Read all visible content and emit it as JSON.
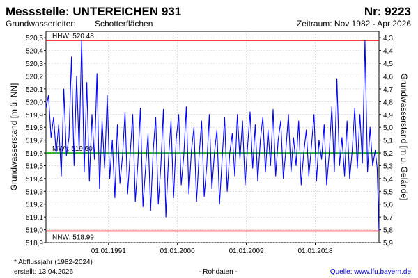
{
  "header": {
    "title": "Messstelle: UNTEREICHEN 931",
    "number": "Nr: 9223",
    "aquifer_label": "Grundwasserleiter:",
    "aquifer_value": "Schotterflächen",
    "period": "Zeitraum: Nov 1982 - Apr 2026"
  },
  "footer": {
    "note": "* Abflussjahr (1982-2024)",
    "created": "erstellt:  13.04.2026",
    "data_type": "- Rohdaten -",
    "source": "Quelle: www.lfu.bayern.de"
  },
  "colors": {
    "series": "#0000ff",
    "extremes": "#ff0000",
    "mean": "#00a000",
    "grid": "#c8c8c8"
  },
  "chart_data": {
    "type": "line",
    "ylabel": "Grundwasserstand [m ü. NN]",
    "y2label": "Grundwasserstand [m u. Gelände]",
    "ylim": [
      518.9,
      520.55
    ],
    "y_ticks": [
      518.9,
      519.0,
      519.1,
      519.2,
      519.3,
      519.4,
      519.5,
      519.6,
      519.7,
      519.8,
      519.9,
      520.0,
      520.1,
      520.2,
      520.3,
      520.4,
      520.5
    ],
    "y_tick_labels": [
      "518,9",
      "519,0",
      "519,1",
      "519,2",
      "519,3",
      "519,4",
      "519,5",
      "519,6",
      "519,7",
      "519,8",
      "519,9",
      "520,0",
      "520,1",
      "520,2",
      "520,3",
      "520,4",
      "520,5"
    ],
    "y2_ticks": [
      4.3,
      4.4,
      4.5,
      4.6,
      4.7,
      4.8,
      4.9,
      5.0,
      5.1,
      5.2,
      5.3,
      5.4,
      5.5,
      5.6,
      5.7,
      5.8,
      5.9
    ],
    "y2_tick_labels": [
      "4,3",
      "4,4",
      "4,5",
      "4,6",
      "4,7",
      "4,8",
      "4,9",
      "5,0",
      "5,1",
      "5,2",
      "5,3",
      "5,4",
      "5,5",
      "5,6",
      "5,7",
      "5,8",
      "5,9"
    ],
    "y2_reference_level": 524.8,
    "xlim": [
      "1982-11-01",
      "2026-04-30"
    ],
    "x_ticks": [
      "1991-01-01",
      "2000-01-01",
      "2009-01-01",
      "2018-01-01"
    ],
    "x_tick_labels": [
      "01.01.1991",
      "01.01.2000",
      "01.01.2009",
      "01.01.2018"
    ],
    "grid": true,
    "reference_lines": [
      {
        "label": "HHW: 520.48",
        "value": 520.48,
        "role": "max"
      },
      {
        "label": "MW*: 519.60",
        "value": 519.6,
        "role": "mean"
      },
      {
        "label": "NNW: 518.99",
        "value": 518.99,
        "role": "min"
      }
    ],
    "series": [
      {
        "x": [
          "1982-11-01",
          "1983-03-01",
          "1983-07-01",
          "1983-11-01",
          "1984-03-01",
          "1984-07-01",
          "1984-11-01",
          "1985-03-01",
          "1985-07-01",
          "1985-11-01",
          "1986-03-01",
          "1986-07-01",
          "1986-11-01",
          "1987-03-01",
          "1987-07-01",
          "1987-11-01",
          "1988-03-01",
          "1988-07-01",
          "1988-11-01",
          "1989-03-01",
          "1989-07-01",
          "1989-11-01",
          "1990-03-01",
          "1990-07-01",
          "1990-11-01",
          "1991-03-01",
          "1991-07-01",
          "1991-11-01",
          "1992-03-01",
          "1992-07-01",
          "1992-11-01",
          "1993-03-01",
          "1993-07-01",
          "1993-11-01",
          "1994-03-01",
          "1994-07-01",
          "1994-11-01",
          "1995-03-01",
          "1995-07-01",
          "1995-11-01",
          "1996-03-01",
          "1996-07-01",
          "1996-11-01",
          "1997-03-01",
          "1997-07-01",
          "1997-11-01",
          "1998-03-01",
          "1998-07-01",
          "1998-11-01",
          "1999-03-01",
          "1999-07-01",
          "1999-11-01",
          "2000-03-01",
          "2000-07-01",
          "2000-11-01",
          "2001-03-01",
          "2001-07-01",
          "2001-11-01",
          "2002-03-01",
          "2002-07-01",
          "2002-11-01",
          "2003-03-01",
          "2003-07-01",
          "2003-11-01",
          "2004-03-01",
          "2004-07-01",
          "2004-11-01",
          "2005-03-01",
          "2005-07-01",
          "2005-11-01",
          "2006-03-01",
          "2006-07-01",
          "2006-11-01",
          "2007-03-01",
          "2007-07-01",
          "2007-11-01",
          "2008-03-01",
          "2008-07-01",
          "2008-11-01",
          "2009-03-01",
          "2009-07-01",
          "2009-11-01",
          "2010-03-01",
          "2010-07-01",
          "2010-11-01",
          "2011-03-01",
          "2011-07-01",
          "2011-11-01",
          "2012-03-01",
          "2012-07-01",
          "2012-11-01",
          "2013-03-01",
          "2013-07-01",
          "2013-11-01",
          "2014-03-01",
          "2014-07-01",
          "2014-11-01",
          "2015-03-01",
          "2015-07-01",
          "2015-11-01",
          "2016-03-01",
          "2016-07-01",
          "2016-11-01",
          "2017-03-01",
          "2017-07-01",
          "2017-11-01",
          "2018-03-01",
          "2018-07-01",
          "2018-11-01",
          "2019-03-01",
          "2019-07-01",
          "2019-11-01",
          "2020-03-01",
          "2020-07-01",
          "2020-11-01",
          "2021-03-01",
          "2021-07-01",
          "2021-11-01",
          "2022-03-01",
          "2022-07-01",
          "2022-11-01",
          "2023-03-01",
          "2023-07-01",
          "2023-11-01",
          "2024-03-01",
          "2024-07-01",
          "2024-11-01",
          "2025-03-01",
          "2025-07-01",
          "2025-11-01",
          "2026-02-01",
          "2026-04-30"
        ],
        "values": [
          519.95,
          520.05,
          519.72,
          519.88,
          519.6,
          519.82,
          519.42,
          520.1,
          519.58,
          519.72,
          520.35,
          519.5,
          520.2,
          519.62,
          520.48,
          519.45,
          520.15,
          519.38,
          519.9,
          519.55,
          520.22,
          519.32,
          519.85,
          519.48,
          520.05,
          519.4,
          519.7,
          519.25,
          519.82,
          519.36,
          519.58,
          519.92,
          519.28,
          519.6,
          519.9,
          519.22,
          519.52,
          519.95,
          519.18,
          519.48,
          519.75,
          519.15,
          519.62,
          519.88,
          519.2,
          519.5,
          519.94,
          519.1,
          519.55,
          519.85,
          519.25,
          519.7,
          519.9,
          519.35,
          519.58,
          519.96,
          519.28,
          519.62,
          519.8,
          519.22,
          519.58,
          519.85,
          519.26,
          519.5,
          519.9,
          519.32,
          519.6,
          519.78,
          519.2,
          519.55,
          519.88,
          519.3,
          519.6,
          519.75,
          519.42,
          519.9,
          519.55,
          519.85,
          519.35,
          519.65,
          519.92,
          519.48,
          519.82,
          519.38,
          519.7,
          519.88,
          519.45,
          519.78,
          519.5,
          519.94,
          519.42,
          519.7,
          519.85,
          519.4,
          519.62,
          519.9,
          519.45,
          519.72,
          519.5,
          519.85,
          519.35,
          519.6,
          519.78,
          519.42,
          519.65,
          519.9,
          519.38,
          519.7,
          519.55,
          519.82,
          519.35,
          519.6,
          519.96,
          519.45,
          520.18,
          519.5,
          519.72,
          519.42,
          519.85,
          519.4,
          519.62,
          519.95,
          519.48,
          519.9,
          519.52,
          520.48,
          519.45,
          519.8,
          519.5,
          519.62,
          519.48,
          518.99
        ]
      }
    ]
  }
}
